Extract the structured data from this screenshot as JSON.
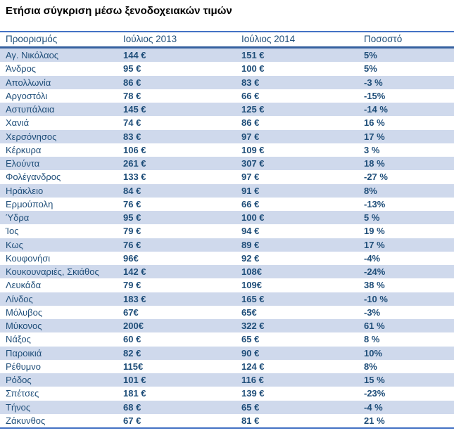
{
  "title": "Ετήσια σύγκριση μέσω ξενοδοχειακών τιμών",
  "colors": {
    "title_text": "#000000",
    "body_text": "#1f4e79",
    "table_outer_border": "#4472c4",
    "header_rule": "#35609f",
    "row_stripe": "#cfd9ec",
    "background": "#ffffff"
  },
  "table": {
    "columns": [
      "Προορισμός",
      "Ιούλιος 2013",
      "Ιούλιος 2014",
      "Ποσοστό"
    ],
    "rows": [
      {
        "destination": "Αγ. Νικόλαος",
        "jul2013": "144 €",
        "jul2014": "151 €",
        "percent": "5%"
      },
      {
        "destination": "Άνδρος",
        "jul2013": "95 €",
        "jul2014": "100 €",
        "percent": "5%"
      },
      {
        "destination": "Απολλωνία",
        "jul2013": "86 €",
        "jul2014": "83 €",
        "percent": "-3 %"
      },
      {
        "destination": "Αργοστόλι",
        "jul2013": "78 €",
        "jul2014": "66 €",
        "percent": "-15%"
      },
      {
        "destination": "Αστυπάλαια",
        "jul2013": "145 €",
        "jul2014": "125 €",
        "percent": "-14 %"
      },
      {
        "destination": "Χανιά",
        "jul2013": "74 €",
        "jul2014": "86 €",
        "percent": "16 %"
      },
      {
        "destination": "Χερσόνησος",
        "jul2013": "83 €",
        "jul2014": "97 €",
        "percent": "17 %"
      },
      {
        "destination": "Κέρκυρα",
        "jul2013": "106 €",
        "jul2014": "109 €",
        "percent": "3 %"
      },
      {
        "destination": "Ελούντα",
        "jul2013": "261 €",
        "jul2014": "307 €",
        "percent": "18 %"
      },
      {
        "destination": "Φολέγανδρος",
        "jul2013": "133 €",
        "jul2014": "97 €",
        "percent": "-27 %"
      },
      {
        "destination": "Ηράκλειο",
        "jul2013": "84 €",
        "jul2014": "91 €",
        "percent": "8%"
      },
      {
        "destination": "Ερμούπολη",
        "jul2013": "76 €",
        "jul2014": "66 €",
        "percent": "-13%"
      },
      {
        "destination": "Ύδρα",
        "jul2013": "95 €",
        "jul2014": "100 €",
        "percent": "5 %"
      },
      {
        "destination": "Ίος",
        "jul2013": "79 €",
        "jul2014": "94 €",
        "percent": "19 %"
      },
      {
        "destination": "Κως",
        "jul2013": "76 €",
        "jul2014": "89 €",
        "percent": "17 %"
      },
      {
        "destination": "Κουφονήσι",
        "jul2013": "96€",
        "jul2014": "92 €",
        "percent": "-4%"
      },
      {
        "destination": "Κουκουναριές, Σκιάθος",
        "jul2013": "142 €",
        "jul2014": "108€",
        "percent": "-24%"
      },
      {
        "destination": "Λευκάδα",
        "jul2013": "79 €",
        "jul2014": "109€",
        "percent": "38 %"
      },
      {
        "destination": "Λίνδος",
        "jul2013": "183 €",
        "jul2014": "165 €",
        "percent": "-10 %"
      },
      {
        "destination": "Μόλυβος",
        "jul2013": "67€",
        "jul2014": "65€",
        "percent": "-3%"
      },
      {
        "destination": "Μύκονος",
        "jul2013": "200€",
        "jul2014": "322 €",
        "percent": "61 %"
      },
      {
        "destination": "Νάξος",
        "jul2013": "60 €",
        "jul2014": "65 €",
        "percent": "8 %"
      },
      {
        "destination": "Παροικιά",
        "jul2013": "82 €",
        "jul2014": "90 €",
        "percent": "10%"
      },
      {
        "destination": "Ρέθυμνο",
        "jul2013": "115€",
        "jul2014": "124 €",
        "percent": "8%"
      },
      {
        "destination": "Ρόδος",
        "jul2013": "101 €",
        "jul2014": "116 €",
        "percent": "15 %"
      },
      {
        "destination": "Σπέτσες",
        "jul2013": "181 €",
        "jul2014": "139 €",
        "percent": "-23%"
      },
      {
        "destination": "Τήνος",
        "jul2013": "68 €",
        "jul2014": "65 €",
        "percent": "-4 %"
      },
      {
        "destination": "Ζάκυνθος",
        "jul2013": "67 €",
        "jul2014": "81 €",
        "percent": "21 %"
      }
    ]
  }
}
